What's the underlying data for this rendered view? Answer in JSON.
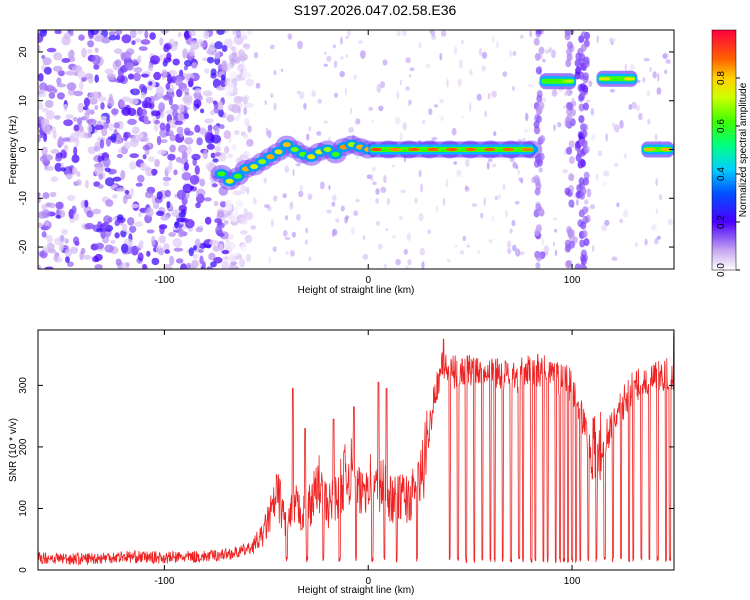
{
  "figure_title": "S197.2026.047.02.58.E36",
  "chart_data": [
    {
      "type": "heatmap",
      "title": "",
      "xlabel": "Height of straight line (km)",
      "ylabel": "Frequency (Hz)",
      "xlim": [
        -162,
        150
      ],
      "ylim": [
        -24.5,
        24.5
      ],
      "xticks": [
        -100,
        0,
        100
      ],
      "yticks": [
        -20,
        -10,
        0,
        10,
        20
      ],
      "colorbar": {
        "label": "Normalized spectral amplitude",
        "range": [
          0,
          1
        ],
        "ticks": [
          0.0,
          0.2,
          0.4,
          0.6,
          0.8
        ]
      },
      "noise_region_km": [
        -162,
        -70
      ],
      "signal_track": {
        "x": [
          -72,
          -68,
          -64,
          -60,
          -56,
          -52,
          -48,
          -44,
          -40,
          -36,
          -32,
          -28,
          -24,
          -20,
          -16,
          -12,
          -8,
          -4,
          0,
          10,
          20,
          30,
          40,
          50,
          60,
          70,
          80
        ],
        "y": [
          -5,
          -6.5,
          -5.5,
          -4,
          -3.5,
          -2.5,
          -1.5,
          -0.5,
          1,
          0,
          -1,
          -1.5,
          -0.5,
          0,
          -1,
          0.5,
          1,
          0.5,
          0,
          0,
          0,
          0,
          0,
          0,
          0,
          0,
          0
        ]
      },
      "bright_segments": [
        {
          "x": [
            0,
            82
          ],
          "y": 0,
          "peak": 0.95
        },
        {
          "x": [
            84,
            102
          ],
          "y": 14,
          "peak": 0.7
        },
        {
          "x": [
            112,
            132
          ],
          "y": 14.5,
          "peak": 0.85
        },
        {
          "x": [
            134,
            150
          ],
          "y": 0,
          "peak": 0.9
        }
      ],
      "gaps_km": [
        [
          103,
          111
        ]
      ]
    },
    {
      "type": "line",
      "title": "",
      "xlabel": "Height of straight line (km)",
      "ylabel": "SNR (10 * v/v)",
      "xlim": [
        -162,
        150
      ],
      "ylim": [
        0,
        390
      ],
      "xticks": [
        -100,
        0,
        100
      ],
      "yticks": [
        0,
        100,
        200,
        300
      ],
      "color": "#ee2222",
      "series": [
        {
          "name": "SNR",
          "x": [
            -162,
            -140,
            -120,
            -100,
            -80,
            -65,
            -58,
            -52,
            -48,
            -44,
            -40,
            -36,
            -32,
            -28,
            -24,
            -20,
            -16,
            -12,
            -8,
            -4,
            0,
            4,
            8,
            12,
            16,
            20,
            24,
            28,
            32,
            36,
            40,
            50,
            60,
            70,
            80,
            90,
            100,
            104,
            108,
            112,
            120,
            130,
            140,
            150
          ],
          "values": [
            20,
            18,
            22,
            20,
            22,
            28,
            35,
            55,
            90,
            120,
            70,
            105,
            90,
            110,
            140,
            100,
            120,
            150,
            160,
            120,
            150,
            130,
            140,
            110,
            120,
            115,
            130,
            180,
            280,
            330,
            320,
            325,
            330,
            310,
            325,
            320,
            300,
            260,
            210,
            180,
            240,
            300,
            310,
            320
          ],
          "spikes": [
            {
              "x": -45,
              "y": 155
            },
            {
              "x": -37,
              "y": 295
            },
            {
              "x": -31,
              "y": 230
            },
            {
              "x": -17,
              "y": 245
            },
            {
              "x": -7,
              "y": 265
            },
            {
              "x": 5,
              "y": 305
            },
            {
              "x": 9,
              "y": 295
            },
            {
              "x": 37,
              "y": 375
            },
            {
              "x": 150,
              "y": 385
            }
          ],
          "dropouts_km": [
            -40,
            -30,
            -22,
            -14,
            -6,
            2,
            8,
            14,
            24,
            40,
            44,
            48,
            52,
            56,
            60,
            62,
            66,
            70,
            74,
            76,
            80,
            82,
            86,
            88,
            92,
            94,
            96,
            98,
            100,
            102,
            104,
            108,
            112,
            116,
            120,
            124,
            128,
            130,
            134,
            138,
            142,
            146,
            148
          ]
        }
      ]
    }
  ]
}
